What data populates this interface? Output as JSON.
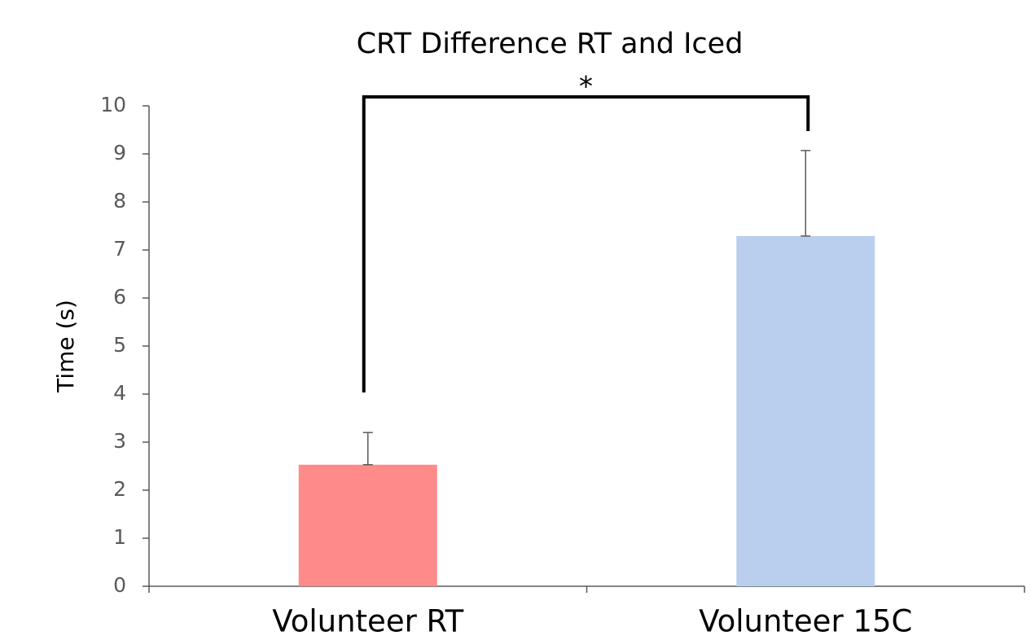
{
  "chart_data": {
    "type": "bar",
    "title": "CRT Difference RT and Iced",
    "y_label": "Time (s)",
    "categories": [
      "Volunteer RT",
      "Volunteer 15C"
    ],
    "values": [
      2.53,
      7.29
    ],
    "errors": [
      0.67,
      1.78
    ],
    "colors": [
      "#ff8a8a",
      "#b9cfed"
    ],
    "annotation": "*",
    "ylim": [
      0,
      10
    ],
    "yticks": [
      0,
      1,
      2,
      3,
      4,
      5,
      6,
      7,
      8,
      9,
      10
    ],
    "grid": false
  }
}
